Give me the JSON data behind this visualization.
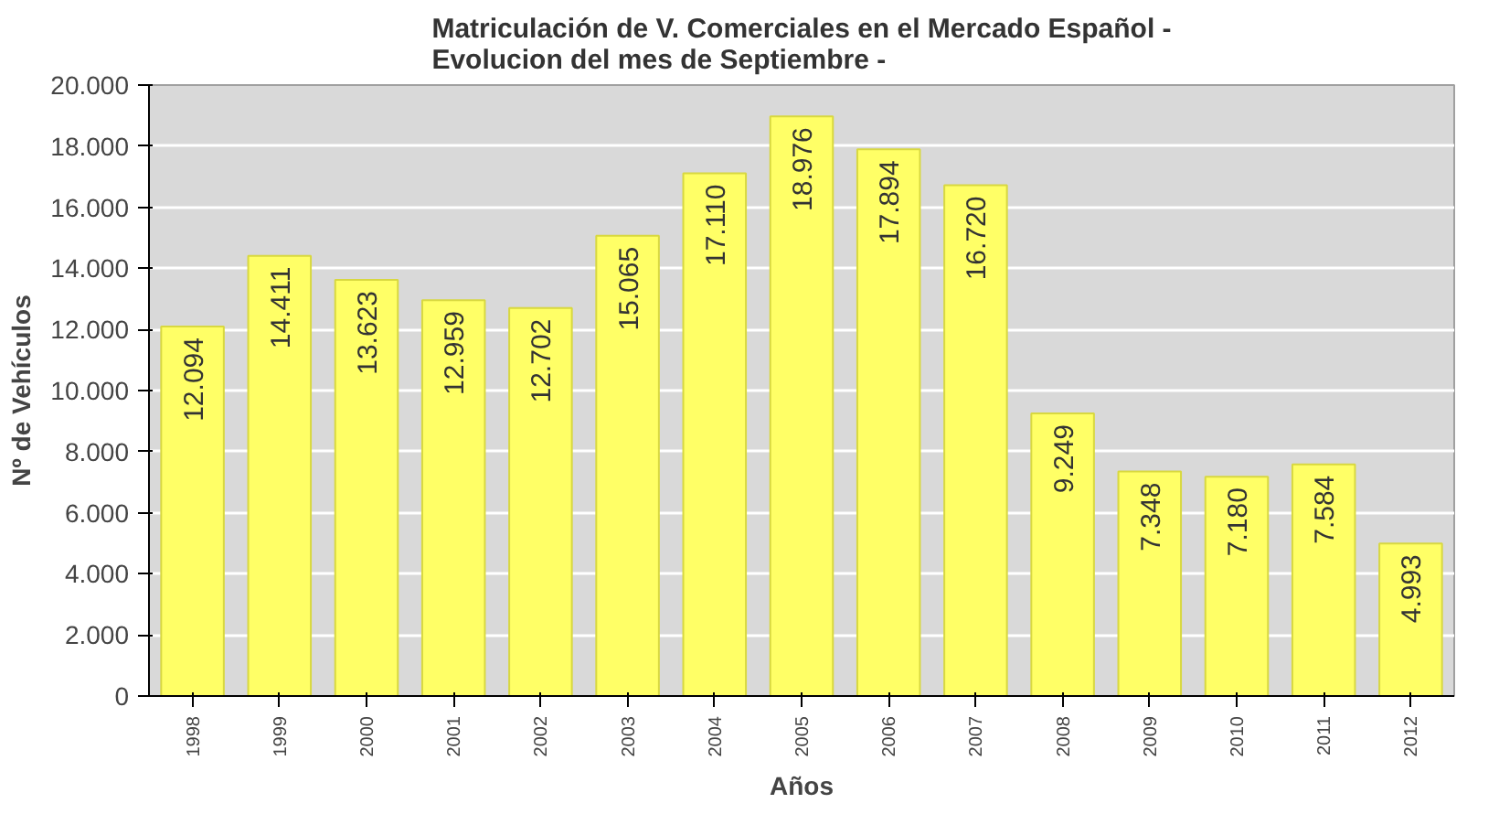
{
  "chart_data": {
    "type": "bar",
    "title": "Matriculación de V. Comerciales en el Mercado Español -\nEvolucion del mes de Septiembre -",
    "xlabel": "Años",
    "ylabel": "Nº de Vehículos",
    "categories": [
      "1998",
      "1999",
      "2000",
      "2001",
      "2002",
      "2003",
      "2004",
      "2005",
      "2006",
      "2007",
      "2008",
      "2009",
      "2010",
      "2011",
      "2012"
    ],
    "values": [
      12094,
      14411,
      13623,
      12959,
      12702,
      15065,
      17110,
      18976,
      17894,
      16720,
      9249,
      7348,
      7180,
      7584,
      4993
    ],
    "value_labels": [
      "12.094",
      "14.411",
      "13.623",
      "12.959",
      "12.702",
      "15.065",
      "17.110",
      "18.976",
      "17.894",
      "16.720",
      "9.249",
      "7.348",
      "7.180",
      "7.584",
      "4.993"
    ],
    "color": "#ffff66",
    "ylim": [
      0,
      20000
    ],
    "yticks": [
      {
        "value": 0,
        "label": "0"
      },
      {
        "value": 2000,
        "label": "2.000"
      },
      {
        "value": 4000,
        "label": "4.000"
      },
      {
        "value": 6000,
        "label": "6.000"
      },
      {
        "value": 8000,
        "label": "8.000"
      },
      {
        "value": 10000,
        "label": "10.000"
      },
      {
        "value": 12000,
        "label": "12.000"
      },
      {
        "value": 14000,
        "label": "14.000"
      },
      {
        "value": 16000,
        "label": "16.000"
      },
      {
        "value": 18000,
        "label": "18.000"
      },
      {
        "value": 20000,
        "label": "20.000"
      }
    ],
    "grid": "y"
  }
}
